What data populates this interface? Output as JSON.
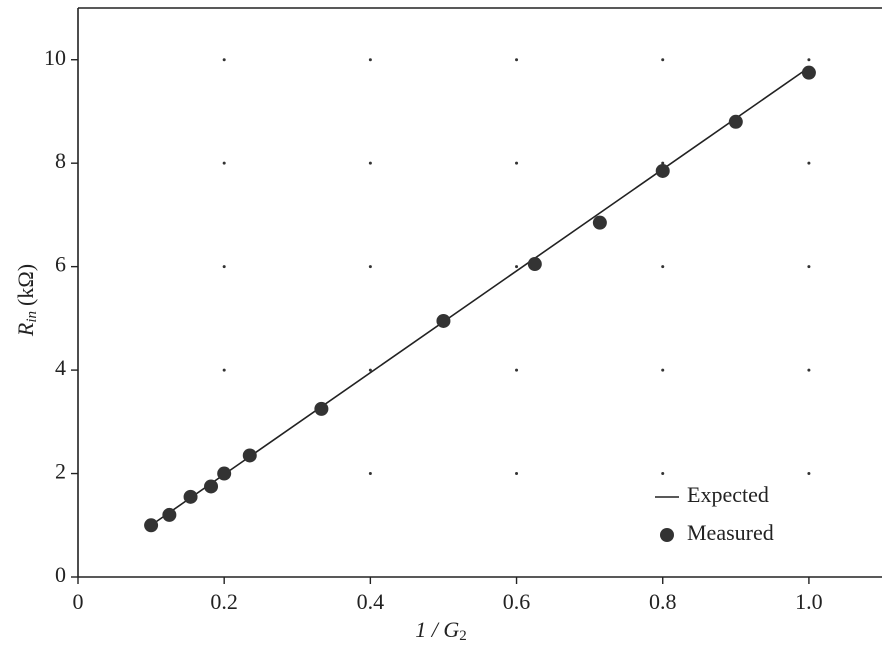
{
  "chart_data": {
    "type": "scatter-line",
    "x_label": "1 / G",
    "x_label_sub": "2",
    "y_label": "R",
    "y_label_sub": "in",
    "y_label_unit": "(kΩ)",
    "xlim": [
      0,
      1.1
    ],
    "ylim": [
      0,
      11
    ],
    "xticks": [
      0,
      0.2,
      0.4,
      0.6,
      0.8,
      {
        "value": 1,
        "label": "1.0"
      }
    ],
    "yticks": [
      0,
      2,
      4,
      6,
      8,
      10
    ],
    "grid": "dots",
    "legend": "lower right",
    "series": [
      {
        "name": "Expected",
        "kind": "line",
        "color": "#222",
        "x": [
          0.1,
          1.0
        ],
        "values": [
          1.0,
          9.85
        ]
      },
      {
        "name": "Measured",
        "kind": "marker",
        "color": "#333",
        "x": [
          0.1,
          0.125,
          0.154,
          0.182,
          0.2,
          0.235,
          0.333,
          0.5,
          0.625,
          0.714,
          0.8,
          0.9,
          1.0
        ],
        "values": [
          1.0,
          1.2,
          1.55,
          1.75,
          2.0,
          2.35,
          3.25,
          4.95,
          6.05,
          6.85,
          7.85,
          8.8,
          9.75
        ]
      }
    ]
  }
}
